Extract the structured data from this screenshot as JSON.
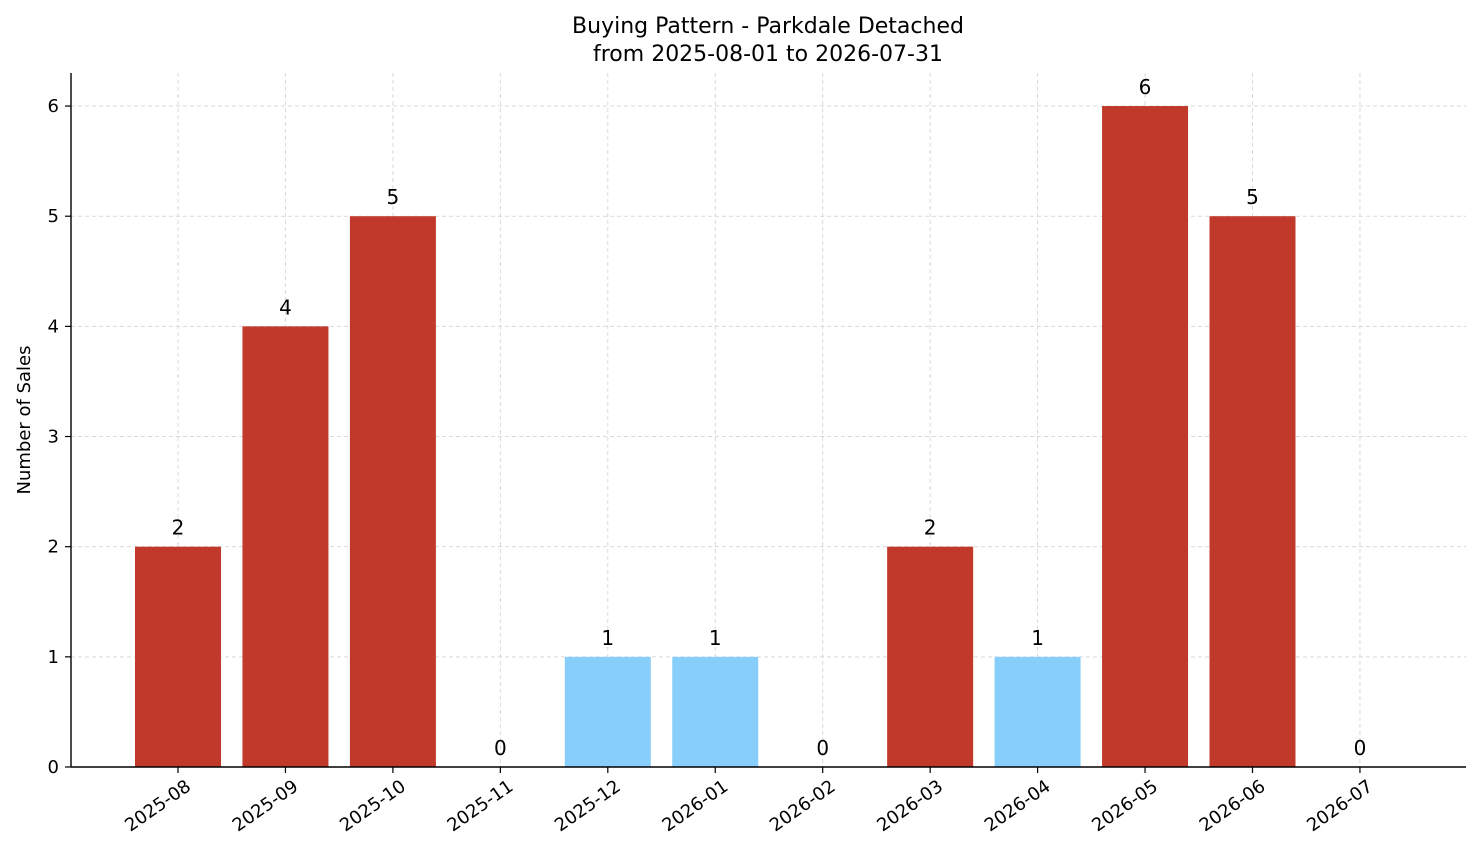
{
  "chart_data": {
    "type": "bar",
    "title_line1": "Buying Pattern - Parkdale Detached",
    "title_line2": "from 2025-08-01 to 2026-07-31",
    "xlabel": "",
    "ylabel": "Number of Sales",
    "categories": [
      "2025-08",
      "2025-09",
      "2025-10",
      "2025-11",
      "2025-12",
      "2026-01",
      "2026-02",
      "2026-03",
      "2026-04",
      "2026-05",
      "2026-06",
      "2026-07"
    ],
    "values": [
      2,
      4,
      5,
      0,
      1,
      1,
      0,
      2,
      1,
      6,
      5,
      0
    ],
    "bar_colors": [
      "#c0392b",
      "#c0392b",
      "#c0392b",
      "#c0392b",
      "#87cefa",
      "#87cefa",
      "#c0392b",
      "#c0392b",
      "#87cefa",
      "#c0392b",
      "#c0392b",
      "#c0392b"
    ],
    "yticks": [
      0,
      1,
      2,
      3,
      4,
      5,
      6
    ],
    "ylim": [
      0,
      6.3
    ],
    "grid": true,
    "legend": "none"
  }
}
